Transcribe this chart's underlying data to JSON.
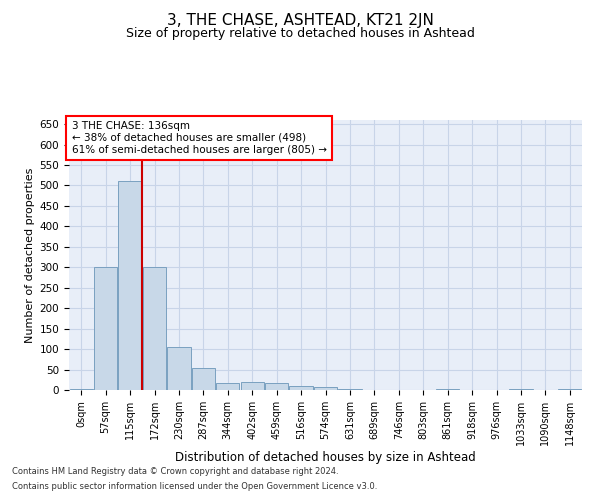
{
  "title": "3, THE CHASE, ASHTEAD, KT21 2JN",
  "subtitle": "Size of property relative to detached houses in Ashtead",
  "xlabel": "Distribution of detached houses by size in Ashtead",
  "ylabel": "Number of detached properties",
  "footnote1": "Contains HM Land Registry data © Crown copyright and database right 2024.",
  "footnote2": "Contains public sector information licensed under the Open Government Licence v3.0.",
  "bar_labels": [
    "0sqm",
    "57sqm",
    "115sqm",
    "172sqm",
    "230sqm",
    "287sqm",
    "344sqm",
    "402sqm",
    "459sqm",
    "516sqm",
    "574sqm",
    "631sqm",
    "689sqm",
    "746sqm",
    "803sqm",
    "861sqm",
    "918sqm",
    "976sqm",
    "1033sqm",
    "1090sqm",
    "1148sqm"
  ],
  "bar_heights": [
    3,
    300,
    510,
    300,
    105,
    55,
    18,
    20,
    18,
    10,
    8,
    2,
    0,
    0,
    0,
    2,
    0,
    0,
    2,
    0,
    2
  ],
  "bar_color": "#c8d8e8",
  "bar_edge_color": "#7aa0c0",
  "vline_color": "#cc0000",
  "annotation_text": "3 THE CHASE: 136sqm\n← 38% of detached houses are smaller (498)\n61% of semi-detached houses are larger (805) →",
  "ylim": [
    0,
    660
  ],
  "yticks": [
    0,
    50,
    100,
    150,
    200,
    250,
    300,
    350,
    400,
    450,
    500,
    550,
    600,
    650
  ],
  "grid_color": "#c8d4e8",
  "bg_color": "#e8eef8",
  "title_fontsize": 11,
  "subtitle_fontsize": 9
}
